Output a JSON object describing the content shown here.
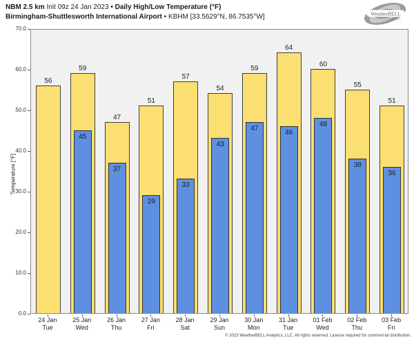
{
  "header": {
    "line1": {
      "model": "NBM 2.5 km",
      "init": "Init 09z 24 Jan 2023",
      "sep": "•",
      "product": "Daily High/Low Temperature (°F)"
    },
    "line2": {
      "station": "Birmingham-Shuttlesworth International Airport",
      "sep": "•",
      "details": "KBHM [33.5629°N, 86.7535°W]"
    }
  },
  "logo": {
    "brand": "WeatherBELL",
    "sub": "Analytics LLC"
  },
  "chart_data": {
    "type": "bar",
    "title": "NBM 2.5 km Init 09z 24 Jan 2023 • Daily High/Low Temperature (°F)",
    "subtitle": "Birmingham-Shuttlesworth International Airport • KBHM [33.5629°N, 86.7535°W]",
    "categories": [
      {
        "date": "24 Jan",
        "day": "Tue"
      },
      {
        "date": "25 Jan",
        "day": "Wed"
      },
      {
        "date": "26 Jan",
        "day": "Thu"
      },
      {
        "date": "27 Jan",
        "day": "Fri"
      },
      {
        "date": "28 Jan",
        "day": "Sat"
      },
      {
        "date": "29 Jan",
        "day": "Sun"
      },
      {
        "date": "30 Jan",
        "day": "Mon"
      },
      {
        "date": "31 Jan",
        "day": "Tue"
      },
      {
        "date": "01 Feb",
        "day": "Wed"
      },
      {
        "date": "02 Feb",
        "day": "Thu"
      },
      {
        "date": "03 Feb",
        "day": "Fri"
      }
    ],
    "series": [
      {
        "name": "Daily High",
        "color": "#fcdf72",
        "values": [
          56,
          59,
          47,
          51,
          57,
          54,
          59,
          64,
          60,
          55,
          51
        ]
      },
      {
        "name": "Daily Low",
        "color": "#5e90e2",
        "values": [
          null,
          45,
          37,
          29,
          33,
          43,
          47,
          46,
          48,
          38,
          36
        ]
      }
    ],
    "ylabel": "Temperature [°F]",
    "xlabel": "",
    "ylim": [
      0,
      70
    ],
    "ytick_step": 10,
    "ytick_format": "one_decimal",
    "grid": false,
    "legend": "none",
    "plot_background": "#f1f1f1"
  },
  "footer": {
    "copyright": "© 2023 WeatherBELL Analytics, LLC. All rights reserved. License required for commercial distribution."
  }
}
